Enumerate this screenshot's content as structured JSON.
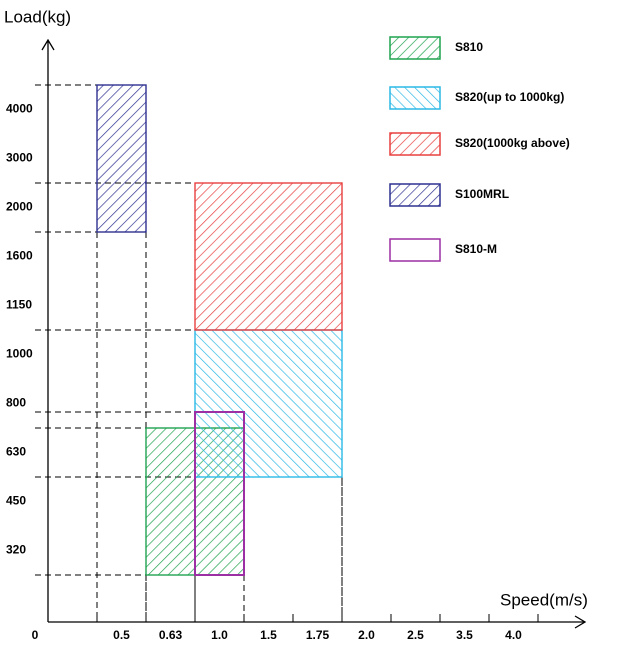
{
  "chart_data": {
    "type": "block",
    "y_axis_title": "Load(kg)",
    "x_axis_title": "Speed(m/s)",
    "origin_label": "0",
    "categories": [
      null,
      "0.5",
      "0.63",
      "1.0",
      "1.5",
      "1.75",
      "2.0",
      "2.5",
      "3.5",
      "4.0"
    ],
    "load_categories": [
      "320",
      "450",
      "630",
      "800",
      "1000",
      "1150",
      "1600",
      "2000",
      "3000",
      "4000"
    ],
    "series": [
      {
        "name": "S810",
        "color": "#1fa34f",
        "hatch": "/",
        "speed": [
          "0.63",
          "1.0"
        ],
        "load": [
          "320",
          "630"
        ]
      },
      {
        "name": "S820(up to 1000kg)",
        "color": "#2bb8e6",
        "hatch": "\\",
        "speed": [
          "1.0",
          "1.75"
        ],
        "load": [
          "630",
          "1000"
        ]
      },
      {
        "name": "S820(1000kg above)",
        "color": "#e8403f",
        "hatch": "/",
        "speed": [
          "1.0",
          "1.75"
        ],
        "load": [
          "1150",
          "2000"
        ]
      },
      {
        "name": "S100MRL",
        "color": "#2e3190",
        "hatch": "/",
        "speed": [
          "0.5",
          "0.5"
        ],
        "load": [
          "2000",
          "4000"
        ]
      },
      {
        "name": "S810-M",
        "color": "#9c2fa3",
        "hatch": "none",
        "speed": [
          "1.0",
          "1.0"
        ],
        "load": [
          "320",
          "630"
        ]
      }
    ]
  }
}
